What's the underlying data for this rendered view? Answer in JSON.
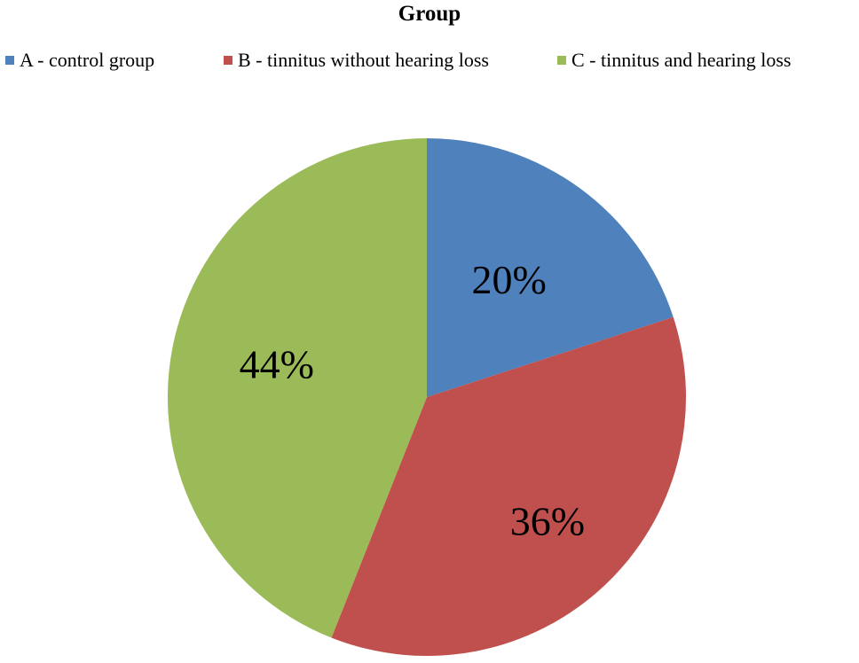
{
  "chart_data": {
    "type": "pie",
    "title": "Group",
    "categories": [
      "A - control group",
      "B - tinnitus without hearing loss",
      "C - tinnitus and hearing loss"
    ],
    "values": [
      20,
      36,
      44
    ],
    "labels": [
      "20%",
      "36%",
      "44%"
    ],
    "colors": [
      "#4F81BD",
      "#C0504D",
      "#9BBB59"
    ],
    "legend_position": "top",
    "start_angle": "12 o'clock",
    "direction": "clockwise"
  }
}
